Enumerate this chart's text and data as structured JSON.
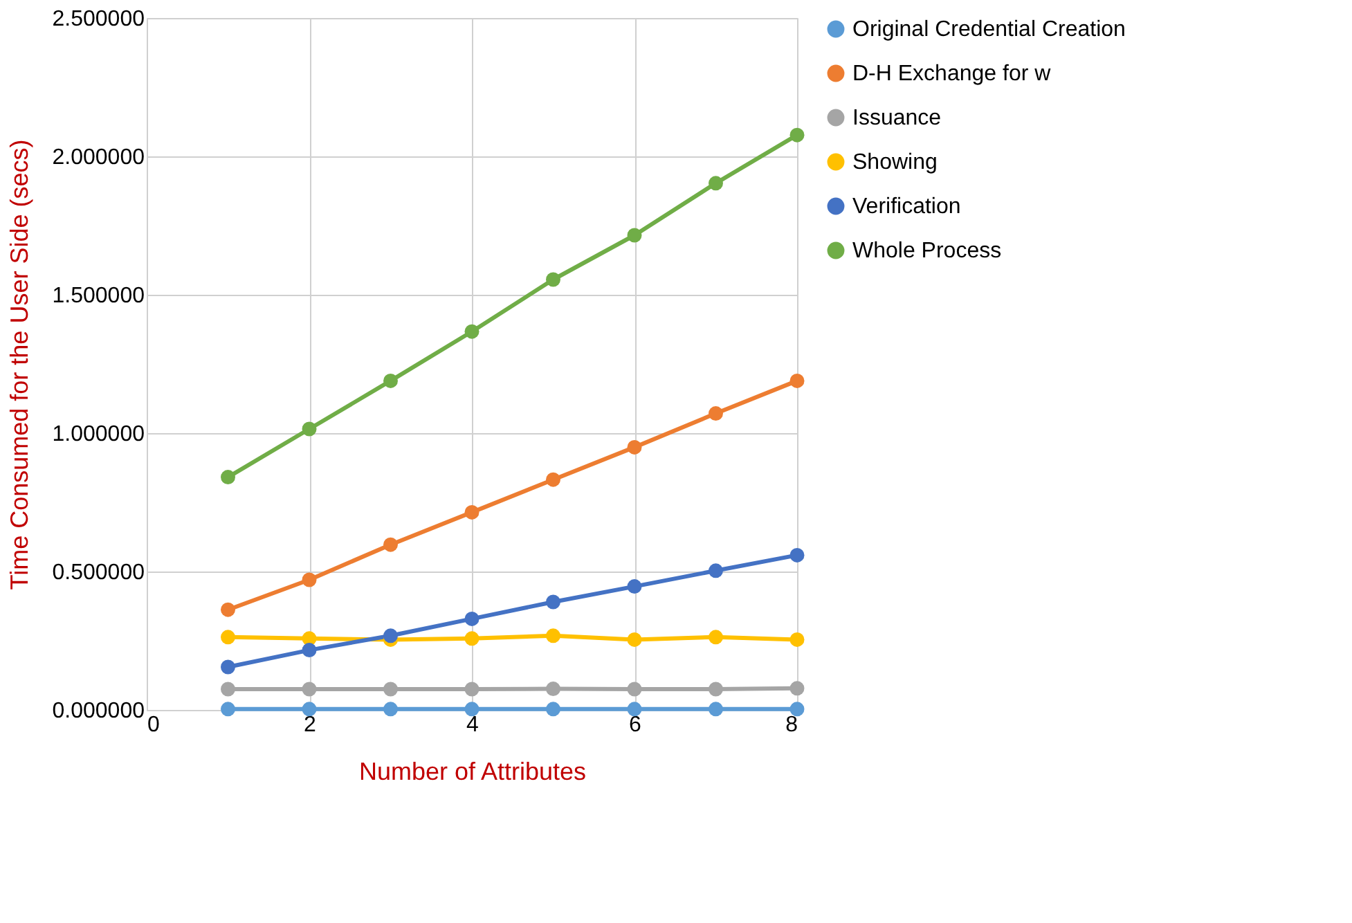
{
  "chart_data": {
    "type": "line",
    "xlabel": "Number of Attributes",
    "ylabel": "Time Consumed for the User Side (secs)",
    "x": [
      1,
      2,
      3,
      4,
      5,
      6,
      7,
      8
    ],
    "xlim": [
      0,
      8
    ],
    "xticks": [
      0,
      2,
      4,
      6,
      8
    ],
    "ylim": [
      0,
      2.5
    ],
    "yticks": [
      {
        "value": 0,
        "label": "0.000000"
      },
      {
        "value": 0.5,
        "label": "0.500000"
      },
      {
        "value": 1,
        "label": "1.000000"
      },
      {
        "value": 1.5,
        "label": "1.500000"
      },
      {
        "value": 2,
        "label": "2.000000"
      },
      {
        "value": 2.5,
        "label": "2.500000"
      }
    ],
    "grid": true,
    "legend": "right",
    "marker": "circle",
    "line_style": "solid",
    "series": [
      {
        "name": "Original Credential Creation",
        "color": "#5b9bd5",
        "values": [
          0.003,
          0.003,
          0.003,
          0.003,
          0.003,
          0.003,
          0.003,
          0.003
        ]
      },
      {
        "name": "D-H Exchange for w",
        "color": "#ed7d31",
        "values": [
          0.362,
          0.47,
          0.597,
          0.714,
          0.832,
          0.949,
          1.071,
          1.189
        ]
      },
      {
        "name": "Issuance",
        "color": "#a5a5a5",
        "values": [
          0.075,
          0.075,
          0.075,
          0.075,
          0.076,
          0.075,
          0.075,
          0.078
        ]
      },
      {
        "name": "Showing",
        "color": "#ffc000",
        "values": [
          0.263,
          0.258,
          0.254,
          0.258,
          0.268,
          0.254,
          0.263,
          0.254
        ]
      },
      {
        "name": "Verification",
        "color": "#4472c4",
        "values": [
          0.155,
          0.216,
          0.268,
          0.329,
          0.39,
          0.446,
          0.503,
          0.559
        ]
      },
      {
        "name": "Whole Process",
        "color": "#70ad47",
        "values": [
          0.841,
          1.015,
          1.189,
          1.367,
          1.555,
          1.715,
          1.903,
          2.077
        ]
      }
    ]
  }
}
